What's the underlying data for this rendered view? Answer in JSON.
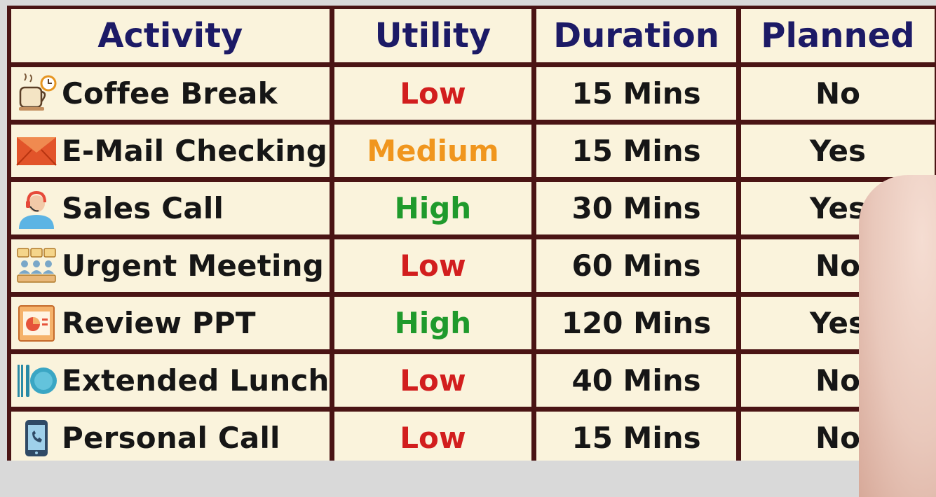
{
  "table": {
    "headers": [
      "Activity",
      "Utility",
      "Duration",
      "Planned"
    ],
    "rows": [
      {
        "activity": "Coffee Break",
        "icon": "coffee-cup-icon",
        "utility": "Low",
        "utility_level": "low",
        "duration": "15 Mins",
        "planned": "No"
      },
      {
        "activity": "E-Mail Checking",
        "icon": "envelope-icon",
        "utility": "Medium",
        "utility_level": "medium",
        "duration": "15 Mins",
        "planned": "Yes"
      },
      {
        "activity": "Sales Call",
        "icon": "headset-agent-icon",
        "utility": "High",
        "utility_level": "high",
        "duration": "30 Mins",
        "planned": "Yes"
      },
      {
        "activity": "Urgent Meeting",
        "icon": "meeting-group-icon",
        "utility": "Low",
        "utility_level": "low",
        "duration": "60 Mins",
        "planned": "No"
      },
      {
        "activity": "Review PPT",
        "icon": "presentation-icon",
        "utility": "High",
        "utility_level": "high",
        "duration": "120 Mins",
        "planned": "Yes"
      },
      {
        "activity": "Extended Lunch",
        "icon": "plate-cutlery-icon",
        "utility": "Low",
        "utility_level": "low",
        "duration": "40 Mins",
        "planned": "No"
      },
      {
        "activity": "Personal Call",
        "icon": "smartphone-call-icon",
        "utility": "Low",
        "utility_level": "low",
        "duration": "15 Mins",
        "planned": "No"
      }
    ]
  },
  "colors": {
    "header_text": "#1c1a66",
    "cell_background": "#faf3dc",
    "border": "#4a1414",
    "low": "#d21e1e",
    "medium": "#f0961e",
    "high": "#1f9a2c"
  }
}
